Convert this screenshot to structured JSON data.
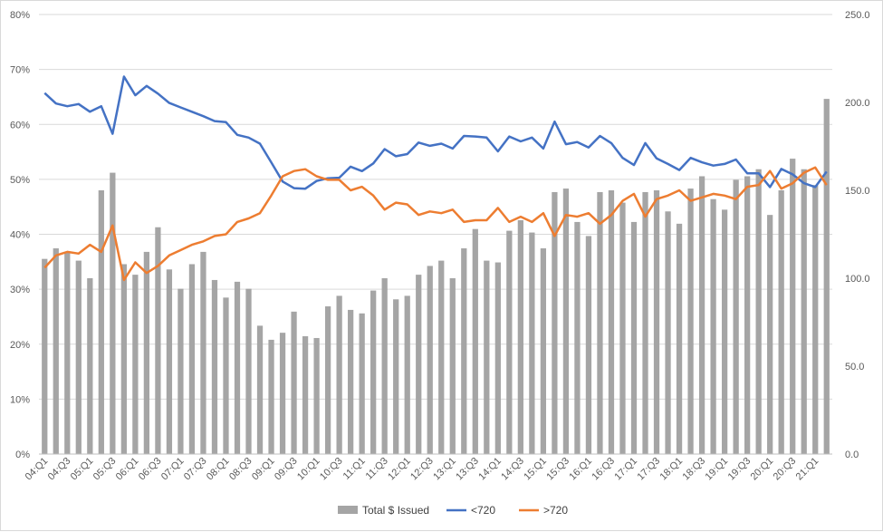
{
  "chart_data": {
    "type": "bar",
    "categories": [
      "04:Q1",
      "04:Q2",
      "04:Q3",
      "04:Q4",
      "05:Q1",
      "05:Q2",
      "05:Q3",
      "05:Q4",
      "06:Q1",
      "06:Q2",
      "06:Q3",
      "06:Q4",
      "07:Q1",
      "07:Q2",
      "07:Q3",
      "07:Q4",
      "08:Q1",
      "08:Q2",
      "08:Q3",
      "08:Q4",
      "09:Q1",
      "09:Q2",
      "09:Q3",
      "09:Q4",
      "10:Q1",
      "10:Q2",
      "10:Q3",
      "10:Q4",
      "11:Q1",
      "11:Q2",
      "11:Q3",
      "11:Q4",
      "12:Q1",
      "12:Q2",
      "12:Q3",
      "12:Q4",
      "13:Q1",
      "13:Q2",
      "13:Q3",
      "13:Q4",
      "14:Q1",
      "14:Q2",
      "14:Q3",
      "14:Q4",
      "15:Q1",
      "15:Q2",
      "15:Q3",
      "15:Q4",
      "16:Q1",
      "16:Q2",
      "16:Q3",
      "16:Q4",
      "17:Q1",
      "17:Q2",
      "17:Q3",
      "17:Q4",
      "18:Q1",
      "18:Q2",
      "18:Q3",
      "18:Q4",
      "19:Q1",
      "19:Q2",
      "19:Q3",
      "19:Q4",
      "20:Q1",
      "20:Q2",
      "20:Q3",
      "20:Q4",
      "21:Q1",
      "21:Q2"
    ],
    "x_tick_labels": [
      "04:Q1",
      "04:Q3",
      "05:Q1",
      "05:Q3",
      "06:Q1",
      "06:Q3",
      "07:Q1",
      "07:Q3",
      "08:Q1",
      "08:Q3",
      "09:Q1",
      "09:Q3",
      "10:Q1",
      "10:Q3",
      "11:Q1",
      "11:Q3",
      "12:Q1",
      "12:Q3",
      "13:Q1",
      "13:Q3",
      "14:Q1",
      "14:Q3",
      "15:Q1",
      "15:Q3",
      "16:Q1",
      "16:Q3",
      "17:Q1",
      "17:Q3",
      "18:Q1",
      "18:Q3",
      "19:Q1",
      "19:Q3",
      "20:Q1",
      "20:Q3",
      "21:Q1"
    ],
    "series": [
      {
        "name": "Total $ Issued",
        "type": "bar",
        "axis": "right",
        "color": "#a5a5a5",
        "values": [
          111,
          117,
          115,
          110,
          100,
          150,
          160,
          108,
          102,
          115,
          129,
          105,
          94,
          108,
          115,
          99,
          89,
          98,
          94,
          73,
          65,
          69,
          81,
          67,
          66,
          84,
          90,
          82,
          80,
          93,
          100,
          88,
          90,
          102,
          107,
          110,
          100,
          117,
          128,
          110,
          109,
          127,
          133,
          126,
          117,
          149,
          151,
          132,
          124,
          149,
          150,
          143,
          132,
          149,
          150,
          138,
          131,
          151,
          158,
          145,
          139,
          156,
          158,
          162,
          136,
          150,
          168,
          162,
          153,
          202
        ]
      },
      {
        "name": "<720",
        "type": "line",
        "axis": "left",
        "color": "#4472c4",
        "values": [
          65.7,
          63.8,
          63.3,
          63.7,
          62.3,
          63.3,
          58.3,
          68.7,
          65.3,
          67,
          65.6,
          63.9,
          63.1,
          62.3,
          61.5,
          60.6,
          60.4,
          58.1,
          57.6,
          56.5,
          53.1,
          49.6,
          48.4,
          48.3,
          49.7,
          50.2,
          50.3,
          52.3,
          51.5,
          52.9,
          55.5,
          54.2,
          54.6,
          56.7,
          56.1,
          56.5,
          55.6,
          57.9,
          57.8,
          57.6,
          55.1,
          57.8,
          56.9,
          57.6,
          55.6,
          60.5,
          56.4,
          56.8,
          55.8,
          57.9,
          56.6,
          53.9,
          52.6,
          56.6,
          53.8,
          52.8,
          51.7,
          53.9,
          53.1,
          52.5,
          52.8,
          53.6,
          51.1,
          51.1,
          48.6,
          51.9,
          50.9,
          49.3,
          48.6,
          51.4
        ]
      },
      {
        "name": ">720",
        "type": "line",
        "axis": "right",
        "color": "#ed7d31",
        "values": [
          106,
          113,
          115,
          114,
          119,
          115,
          130,
          99,
          109,
          103,
          107,
          113,
          116,
          119,
          121,
          124,
          125,
          132,
          134,
          137,
          147,
          158,
          161,
          162,
          158,
          156,
          156,
          150,
          152,
          147,
          139,
          143,
          142,
          136,
          138,
          137,
          139,
          132,
          133,
          133,
          140,
          132,
          135,
          132,
          137,
          124,
          136,
          135,
          137,
          131,
          136,
          144,
          148,
          135,
          145,
          147,
          150,
          144,
          146,
          148,
          147,
          145,
          152,
          153,
          161,
          151,
          154,
          160,
          163,
          153
        ]
      }
    ],
    "y_left": {
      "ticks": [
        "0%",
        "10%",
        "20%",
        "30%",
        "40%",
        "50%",
        "60%",
        "70%",
        "80%"
      ],
      "min": 0,
      "max": 80
    },
    "y_right": {
      "ticks": [
        "0.0",
        "50.0",
        "100.0",
        "150.0",
        "200.0",
        "250.0"
      ],
      "min": 0,
      "max": 250
    },
    "grid": true,
    "legend_position": "bottom"
  }
}
